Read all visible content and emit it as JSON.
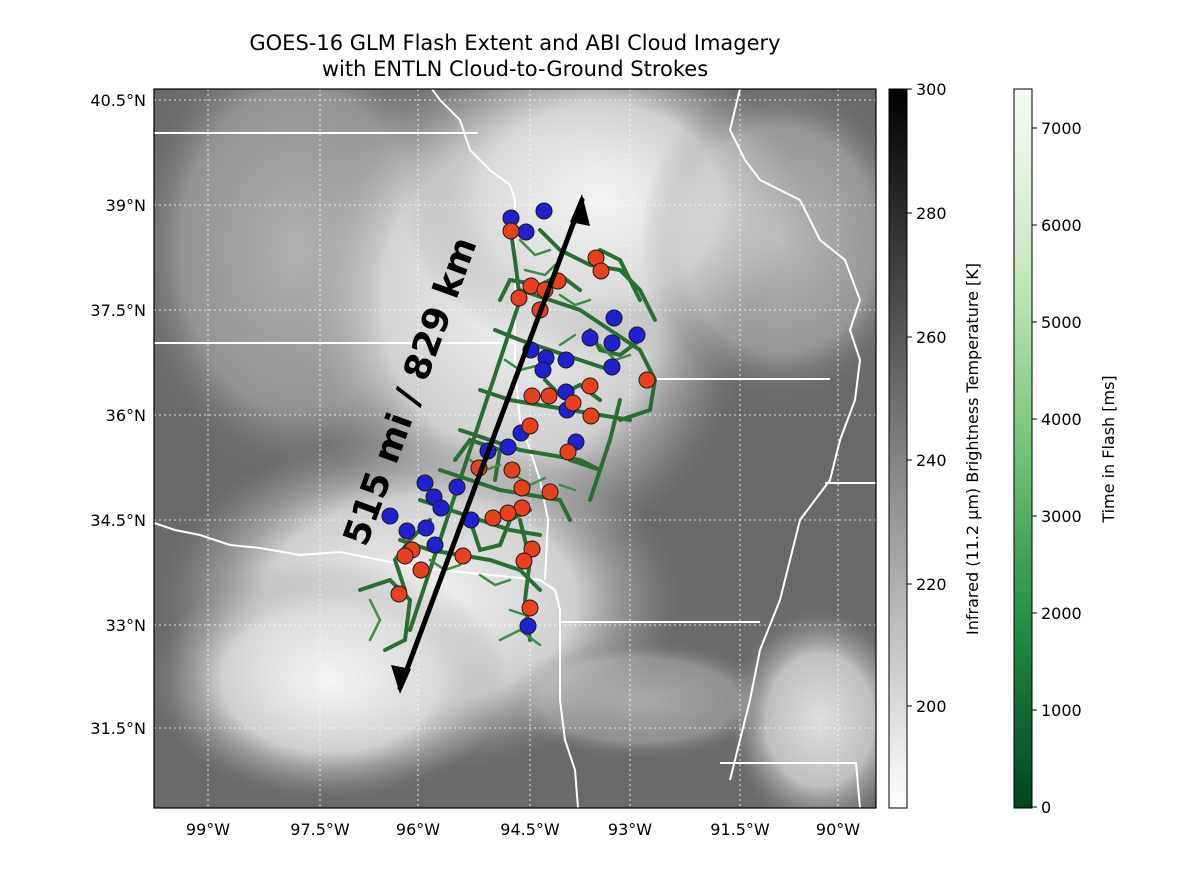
{
  "title": {
    "line1": "GOES-16 GLM Flash Extent and ABI Cloud Imagery",
    "line2": "with ENTLN Cloud-to-Ground Strokes"
  },
  "axes": {
    "lat_labels": [
      "40.5°N",
      "39°N",
      "37.5°N",
      "36°N",
      "34.5°N",
      "33°N",
      "31.5°N"
    ],
    "lon_labels": [
      "99°W",
      "97.5°W",
      "96°W",
      "94.5°W",
      "93°W",
      "91.5°W",
      "90°W"
    ]
  },
  "annotation": {
    "distance_text": "515 mi / 829 km"
  },
  "colorbars": {
    "brightness": {
      "label": "Infrared (11.2 μm) Brightness Temperature [K]",
      "ticks": [
        "300",
        "280",
        "260",
        "240",
        "220",
        "200"
      ],
      "range": [
        184,
        300
      ]
    },
    "flash_time": {
      "label": "Time in Flash [ms]",
      "ticks": [
        "7000",
        "6000",
        "5000",
        "4000",
        "3000",
        "2000",
        "1000",
        "0"
      ],
      "range": [
        0,
        7400
      ]
    }
  },
  "colors": {
    "positive_stroke": "#e8401c",
    "negative_stroke": "#2020d0",
    "flash_green": "#2e7a3a",
    "arrow": "#000000"
  }
}
